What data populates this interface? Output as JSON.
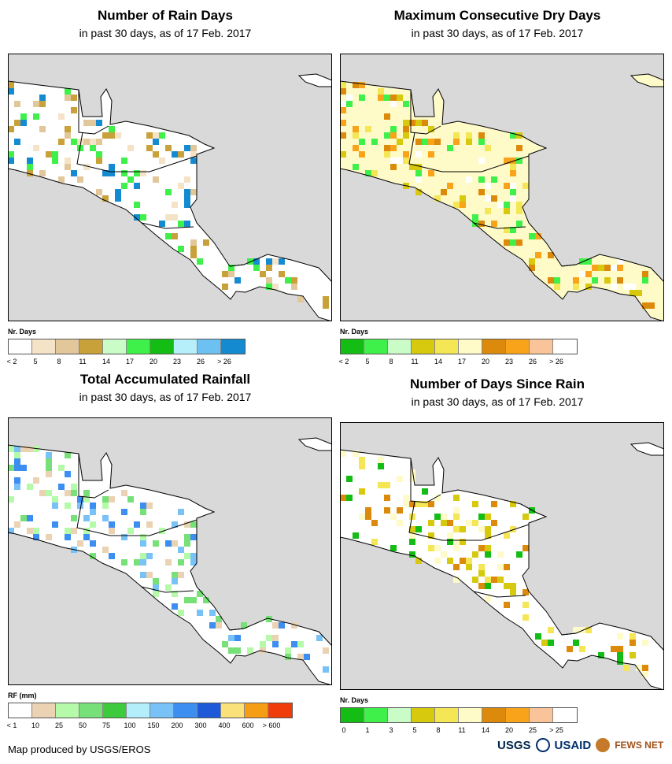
{
  "panels": [
    {
      "title": "Number of Rain Days",
      "subtitle": "in past 30 days, as of 17 Feb. 2017",
      "legend_title": "Nr. Days",
      "legend_colors": [
        "#ffffff",
        "#f5e3c8",
        "#e1c79a",
        "#c9a13a",
        "#c9fcc6",
        "#3ff04a",
        "#14bd14",
        "#b6eefa",
        "#6cc1f2",
        "#148bd0"
      ],
      "legend_labels": [
        "< 2",
        "5",
        "8",
        "11",
        "14",
        "17",
        "20",
        "23",
        "26",
        "> 26"
      ],
      "dominant": "#ffffff",
      "speckle": [
        "#f5e3c8",
        "#e1c79a",
        "#c9a13a",
        "#3ff04a",
        "#148bd0"
      ]
    },
    {
      "title": "Maximum Consecutive Dry Days",
      "subtitle": "in past 30 days, as of 17 Feb. 2017",
      "legend_title": "Nr. Days",
      "legend_colors": [
        "#14bd14",
        "#3ff04a",
        "#c9fcc6",
        "#d6c90e",
        "#f4e655",
        "#fffbc8",
        "#dc8a0c",
        "#f8a31a",
        "#f9c49a",
        "#ffffff"
      ],
      "legend_labels": [
        "< 2",
        "5",
        "8",
        "11",
        "14",
        "17",
        "20",
        "23",
        "26",
        "> 26"
      ],
      "dominant": "#fffbc8",
      "speckle": [
        "#d6c90e",
        "#f4e655",
        "#dc8a0c",
        "#f8a31a",
        "#ffffff",
        "#3ff04a"
      ]
    },
    {
      "title": "Total Accumulated Rainfall",
      "subtitle": "in past 30 days, as of 17 Feb. 2017",
      "legend_title": "RF (mm)",
      "legend_colors": [
        "#ffffff",
        "#ead2b2",
        "#b4faa8",
        "#78e078",
        "#3dcb3d",
        "#b4eefa",
        "#78c2f8",
        "#3c8ef0",
        "#1e5ad8",
        "#fae179",
        "#f59d14",
        "#f03c0a"
      ],
      "legend_labels": [
        "< 1",
        "10",
        "25",
        "50",
        "75",
        "100",
        "150",
        "200",
        "300",
        "400",
        "600",
        "> 600"
      ],
      "dominant": "#ffffff",
      "speckle": [
        "#b4faa8",
        "#78e078",
        "#ead2b2",
        "#78c2f8",
        "#3c8ef0"
      ]
    },
    {
      "title": "Number of Days Since Rain",
      "subtitle": "in past 30 days, as of 17 Feb. 2017",
      "legend_title": "Nr. Days",
      "legend_colors": [
        "#14bd14",
        "#3ff04a",
        "#c9fcc6",
        "#d6c90e",
        "#f4e655",
        "#fffbc8",
        "#dc8a0c",
        "#f8a31a",
        "#f9c49a",
        "#ffffff"
      ],
      "legend_labels": [
        "0",
        "1",
        "3",
        "5",
        "8",
        "11",
        "14",
        "20",
        "25",
        "> 25"
      ],
      "dominant": "#ffffff",
      "speckle": [
        "#14bd14",
        "#d6c90e",
        "#f4e655",
        "#dc8a0c",
        "#fffbc8"
      ]
    }
  ],
  "footer": "Map produced by USGS/EROS",
  "logos": {
    "usgs": "USGS",
    "usaid": "USAID",
    "fews": "FEWS NET"
  },
  "ocean_color": "#d9d9d9",
  "border_color": "#000000"
}
